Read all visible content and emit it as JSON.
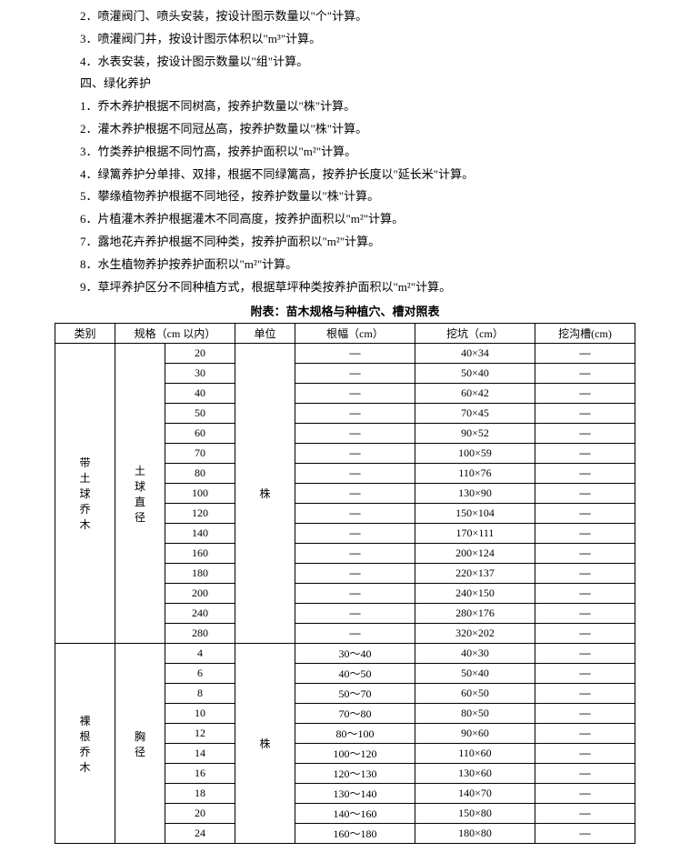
{
  "lines": {
    "l2": "2．喷灌阀门、喷头安装，按设计图示数量以\"个\"计算。",
    "l3": "3．喷灌阀门井，按设计图示体积以\"m³\"计算。",
    "l4": "4．水表安装，按设计图示数量以\"组\"计算。",
    "sec4": "四、绿化养护",
    "s1": "1．乔木养护根据不同树高，按养护数量以\"株\"计算。",
    "s2": "2．灌木养护根据不同冠丛高，按养护数量以\"株\"计算。",
    "s3": "3．竹类养护根据不同竹高，按养护面积以\"m²\"计算。",
    "s4": "4．绿篱养护分单排、双排，根据不同绿篱高，按养护长度以\"延长米\"计算。",
    "s5": "5．攀缘植物养护根据不同地径，按养护数量以\"株\"计算。",
    "s6": "6．片植灌木养护根据灌木不同高度，按养护面积以\"m²\"计算。",
    "s7": "7．露地花卉养护根据不同种类，按养护面积以\"m²\"计算。",
    "s8": "8．水生植物养护按养护面积以\"m²\"计算。",
    "s9": "9．草坪养护区分不同种植方式，根据草坪种类按养护面积以\"m²\"计算。"
  },
  "tableTitle": "附表：苗木规格与种植穴、槽对照表",
  "headers": {
    "h1": "类别",
    "h2": "规格（cm 以内）",
    "h3": "单位",
    "h4": "根幅（cm）",
    "h5": "挖坑（cm）",
    "h6": "挖沟槽(cm)"
  },
  "cat1": {
    "label": "带\n土\n球\n乔\n木",
    "sublabel": "土\n球\n直\n径",
    "unit": "株"
  },
  "cat2": {
    "label": "裸\n根\n乔\n木",
    "sublabel": "胸\n径",
    "unit": "株"
  },
  "rows1": [
    {
      "spec": "20",
      "rf": "—",
      "wk": "40×34",
      "wg": "—"
    },
    {
      "spec": "30",
      "rf": "—",
      "wk": "50×40",
      "wg": "—"
    },
    {
      "spec": "40",
      "rf": "—",
      "wk": "60×42",
      "wg": "—"
    },
    {
      "spec": "50",
      "rf": "—",
      "wk": "70×45",
      "wg": "—"
    },
    {
      "spec": "60",
      "rf": "—",
      "wk": "90×52",
      "wg": "—"
    },
    {
      "spec": "70",
      "rf": "—",
      "wk": "100×59",
      "wg": "—"
    },
    {
      "spec": "80",
      "rf": "—",
      "wk": "110×76",
      "wg": "—"
    },
    {
      "spec": "100",
      "rf": "—",
      "wk": "130×90",
      "wg": "—"
    },
    {
      "spec": "120",
      "rf": "—",
      "wk": "150×104",
      "wg": "—"
    },
    {
      "spec": "140",
      "rf": "—",
      "wk": "170×111",
      "wg": "—"
    },
    {
      "spec": "160",
      "rf": "—",
      "wk": "200×124",
      "wg": "—"
    },
    {
      "spec": "180",
      "rf": "—",
      "wk": "220×137",
      "wg": "—"
    },
    {
      "spec": "200",
      "rf": "—",
      "wk": "240×150",
      "wg": "—"
    },
    {
      "spec": "240",
      "rf": "—",
      "wk": "280×176",
      "wg": "—"
    },
    {
      "spec": "280",
      "rf": "—",
      "wk": "320×202",
      "wg": "—"
    }
  ],
  "rows2": [
    {
      "spec": "4",
      "rf": "30～40",
      "wk": "40×30",
      "wg": "—"
    },
    {
      "spec": "6",
      "rf": "40～50",
      "wk": "50×40",
      "wg": "—"
    },
    {
      "spec": "8",
      "rf": "50～70",
      "wk": "60×50",
      "wg": "—"
    },
    {
      "spec": "10",
      "rf": "70～80",
      "wk": "80×50",
      "wg": "—"
    },
    {
      "spec": "12",
      "rf": "80～100",
      "wk": "90×60",
      "wg": "—"
    },
    {
      "spec": "14",
      "rf": "100～120",
      "wk": "110×60",
      "wg": "—"
    },
    {
      "spec": "16",
      "rf": "120～130",
      "wk": "130×60",
      "wg": "—"
    },
    {
      "spec": "18",
      "rf": "130～140",
      "wk": "140×70",
      "wg": "—"
    },
    {
      "spec": "20",
      "rf": "140～160",
      "wk": "150×80",
      "wg": "—"
    },
    {
      "spec": "24",
      "rf": "160～180",
      "wk": "180×80",
      "wg": "—"
    }
  ]
}
